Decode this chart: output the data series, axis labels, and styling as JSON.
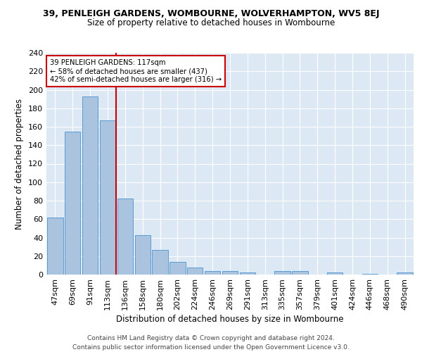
{
  "title": "39, PENLEIGH GARDENS, WOMBOURNE, WOLVERHAMPTON, WV5 8EJ",
  "subtitle": "Size of property relative to detached houses in Wombourne",
  "xlabel": "Distribution of detached houses by size in Wombourne",
  "ylabel": "Number of detached properties",
  "footer_line1": "Contains HM Land Registry data © Crown copyright and database right 2024.",
  "footer_line2": "Contains public sector information licensed under the Open Government Licence v3.0.",
  "annotation_line1": "39 PENLEIGH GARDENS: 117sqm",
  "annotation_line2": "← 58% of detached houses are smaller (437)",
  "annotation_line3": "42% of semi-detached houses are larger (316) →",
  "categories": [
    "47sqm",
    "69sqm",
    "91sqm",
    "113sqm",
    "136sqm",
    "158sqm",
    "180sqm",
    "202sqm",
    "224sqm",
    "246sqm",
    "269sqm",
    "291sqm",
    "313sqm",
    "335sqm",
    "357sqm",
    "379sqm",
    "401sqm",
    "424sqm",
    "446sqm",
    "468sqm",
    "490sqm"
  ],
  "values": [
    62,
    155,
    193,
    167,
    82,
    43,
    27,
    14,
    8,
    4,
    4,
    2,
    0,
    4,
    4,
    0,
    2,
    0,
    1,
    0,
    2
  ],
  "bar_color": "#aac4e0",
  "bar_edge_color": "#5b9bd5",
  "red_line_color": "#cc0000",
  "annotation_box_color": "#ffffff",
  "annotation_box_edge": "#cc0000",
  "background_color": "#dce9f5",
  "ylim": [
    0,
    240
  ],
  "yticks": [
    0,
    20,
    40,
    60,
    80,
    100,
    120,
    140,
    160,
    180,
    200,
    220,
    240
  ]
}
